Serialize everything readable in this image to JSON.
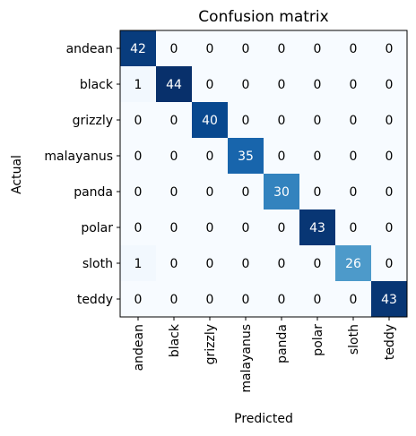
{
  "chart_data": {
    "type": "heatmap",
    "title": "Confusion matrix",
    "xlabel": "Predicted",
    "ylabel": "Actual",
    "x_categories": [
      "andean",
      "black",
      "grizzly",
      "malayanus",
      "panda",
      "polar",
      "sloth",
      "teddy"
    ],
    "y_categories": [
      "andean",
      "black",
      "grizzly",
      "malayanus",
      "panda",
      "polar",
      "sloth",
      "teddy"
    ],
    "values": [
      [
        42,
        0,
        0,
        0,
        0,
        0,
        0,
        0
      ],
      [
        1,
        44,
        0,
        0,
        0,
        0,
        0,
        0
      ],
      [
        0,
        0,
        40,
        0,
        0,
        0,
        0,
        0
      ],
      [
        0,
        0,
        0,
        35,
        0,
        0,
        0,
        0
      ],
      [
        0,
        0,
        0,
        0,
        30,
        0,
        0,
        0
      ],
      [
        0,
        0,
        0,
        0,
        0,
        43,
        0,
        0
      ],
      [
        1,
        0,
        0,
        0,
        0,
        0,
        26,
        0
      ],
      [
        0,
        0,
        0,
        0,
        0,
        0,
        0,
        43
      ]
    ],
    "colormap": "Blues",
    "value_range": [
      0,
      44
    ]
  }
}
